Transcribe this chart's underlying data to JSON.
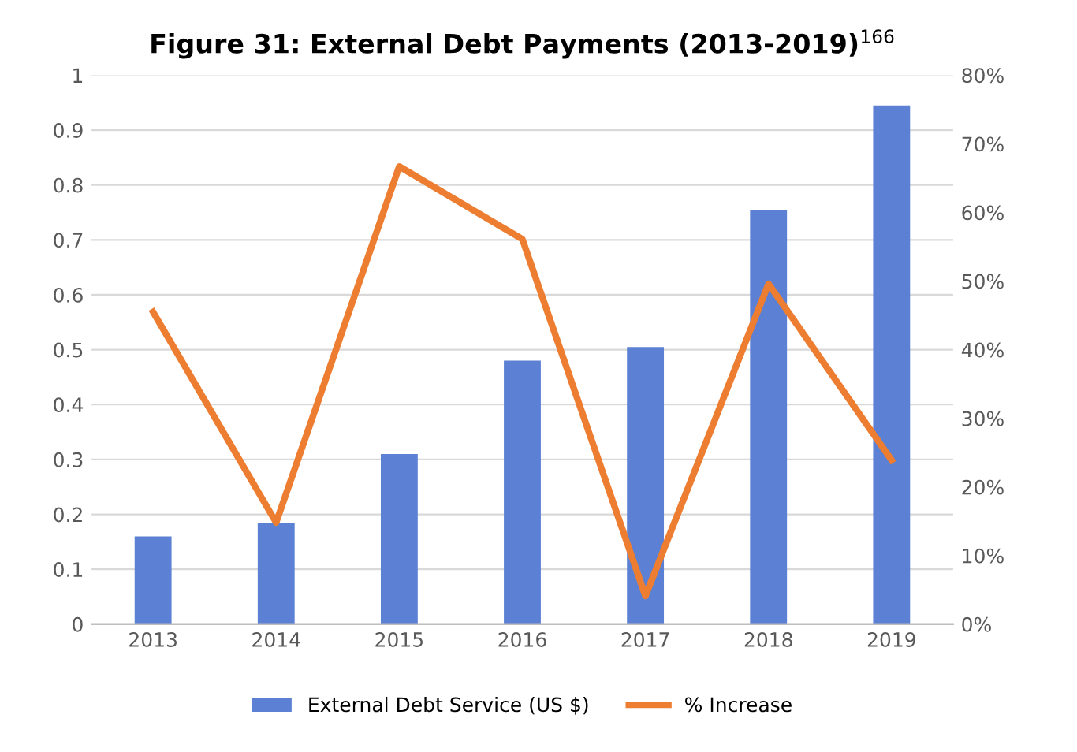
{
  "chart_data": {
    "type": "bar",
    "title": "Figure 31: External Debt Payments (2013-2019)$^{166}$",
    "categories": [
      "2013",
      "2014",
      "2015",
      "2016",
      "2017",
      "2018",
      "2019"
    ],
    "series": [
      {
        "name": "External Debt Service (US $)",
        "color": "#5b80d4",
        "values": [
          0.16,
          0.185,
          0.31,
          0.48,
          0.505,
          0.755,
          0.945
        ]
      },
      {
        "name": "% Increase",
        "type": "line",
        "axis": "y2",
        "color": "#ed7d31",
        "values": [
          45.5,
          14.8,
          66.7,
          56.1,
          4.1,
          49.6,
          23.9
        ]
      }
    ],
    "ylim": [
      0,
      1
    ],
    "yticks": [
      0,
      0.1,
      0.2,
      0.3,
      0.4,
      0.5,
      0.6,
      0.7,
      0.8,
      0.9,
      1
    ],
    "y2lim": [
      0,
      80
    ],
    "y2ticks": [
      {
        "value": 0,
        "label": "0%"
      },
      {
        "value": 10,
        "label": "10%"
      },
      {
        "value": 20,
        "label": "20%"
      },
      {
        "value": 30,
        "label": "30%"
      },
      {
        "value": 40,
        "label": "40%"
      },
      {
        "value": 50,
        "label": "50%"
      },
      {
        "value": 60,
        "label": "60%"
      },
      {
        "value": 70,
        "label": "70%"
      },
      {
        "value": 80,
        "label": "80%"
      }
    ],
    "grid": "y",
    "legend": "bottom",
    "marker": "none",
    "line_style": "solid"
  }
}
